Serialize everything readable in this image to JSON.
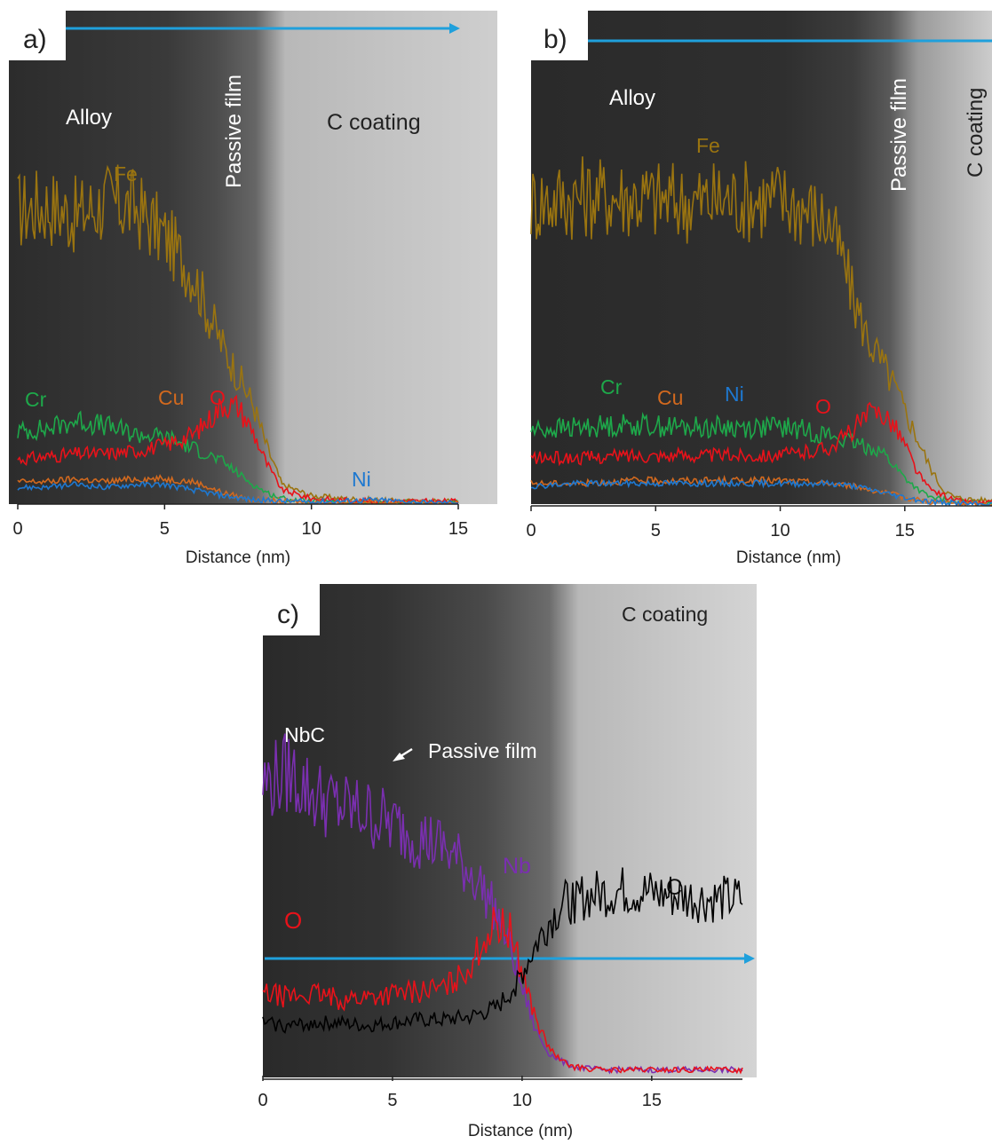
{
  "colors": {
    "Fe": "#9a7410",
    "Cr": "#1ea84a",
    "Cu": "#d2691e",
    "O": "#e8121a",
    "Ni": "#1e78d0",
    "Nb": "#7a2fb0",
    "C": "#000000",
    "arrow": "#1fa0dc",
    "tem_dark": "#2e2e2e",
    "tem_light": "#c8c8c8"
  },
  "chart_data": [
    {
      "type": "line",
      "panel_label": "a)",
      "xlabel": "Distance (nm)",
      "xlim": [
        0,
        15
      ],
      "xticks": [
        0,
        5,
        10,
        15
      ],
      "annotations": [
        "Alloy",
        "Passive film",
        "C coating"
      ],
      "series": [
        {
          "name": "Fe",
          "x": [
            0,
            1,
            2,
            3,
            4,
            5,
            6,
            6.5,
            7,
            7.5,
            8,
            8.5,
            9,
            10,
            11,
            12,
            13,
            14,
            15
          ],
          "y": [
            105,
            107,
            103,
            108,
            106,
            96,
            82,
            68,
            56,
            46,
            36,
            20,
            7,
            3,
            2,
            1.5,
            1,
            1,
            1
          ]
        },
        {
          "name": "Cr",
          "x": [
            0,
            1,
            2,
            3,
            4,
            5,
            6,
            7,
            7.5,
            8,
            8.5,
            9,
            10,
            11,
            12,
            13,
            14,
            15
          ],
          "y": [
            26,
            27,
            30,
            28,
            25,
            24,
            20,
            15,
            11,
            7,
            4,
            2,
            1,
            0.5,
            0.5,
            0.5,
            0.5,
            0.5
          ]
        },
        {
          "name": "O",
          "x": [
            0,
            1,
            2,
            3,
            4,
            5,
            6,
            6.5,
            7,
            7.5,
            8,
            8.5,
            9,
            10,
            11,
            12,
            13,
            14,
            15
          ],
          "y": [
            16,
            17,
            18,
            18,
            19,
            21,
            25,
            30,
            36,
            35,
            26,
            14,
            5,
            2,
            1.5,
            1,
            1,
            1,
            1
          ]
        },
        {
          "name": "Cu",
          "x": [
            0,
            1,
            2,
            3,
            4,
            5,
            6,
            7,
            8,
            9,
            10,
            11,
            12,
            13,
            14,
            15
          ],
          "y": [
            8,
            8,
            9,
            8,
            9,
            9,
            8,
            4,
            1.5,
            1,
            0.5,
            0.5,
            0.5,
            0.5,
            0.5,
            0.5
          ]
        },
        {
          "name": "Ni",
          "x": [
            0,
            1,
            2,
            3,
            4,
            5,
            6,
            7,
            8,
            9,
            10,
            11,
            12,
            13,
            14,
            15
          ],
          "y": [
            6,
            6,
            7,
            6,
            7,
            7,
            5,
            3,
            1.5,
            1,
            0.8,
            1,
            1.5,
            1,
            0.5,
            0.5
          ]
        }
      ]
    },
    {
      "type": "line",
      "panel_label": "b)",
      "xlabel": "Distance (nm)",
      "xlim": [
        0,
        18.5
      ],
      "xticks": [
        0,
        5,
        10,
        15
      ],
      "annotations": [
        "Alloy",
        "Fe",
        "Passive film",
        "C coating"
      ],
      "series": [
        {
          "name": "Fe",
          "x": [
            0,
            2,
            4,
            6,
            8,
            10,
            11,
            12,
            12.5,
            13,
            13.5,
            14,
            14.5,
            15,
            15.5,
            16,
            16.5,
            17,
            18
          ],
          "y": [
            108,
            110,
            110,
            108,
            109,
            109,
            106,
            100,
            88,
            72,
            60,
            52,
            44,
            34,
            24,
            14,
            6,
            3,
            2
          ]
        },
        {
          "name": "Cr",
          "x": [
            0,
            2,
            4,
            6,
            8,
            10,
            11,
            12,
            13,
            14,
            14.5,
            15,
            15.5,
            16,
            17,
            18
          ],
          "y": [
            27,
            28,
            29,
            28,
            28,
            28,
            27,
            25,
            22,
            20,
            15,
            10,
            6,
            3,
            1.5,
            1
          ]
        },
        {
          "name": "O",
          "x": [
            0,
            2,
            4,
            6,
            8,
            10,
            11,
            12,
            12.5,
            13,
            13.5,
            14,
            14.5,
            15,
            15.5,
            16,
            17,
            18
          ],
          "y": [
            17,
            17,
            18,
            18,
            18,
            18,
            19,
            21,
            24,
            28,
            32,
            34,
            30,
            22,
            12,
            6,
            2,
            1
          ]
        },
        {
          "name": "Cu",
          "x": [
            0,
            2,
            4,
            6,
            8,
            10,
            12,
            13,
            14,
            15,
            16,
            17,
            18
          ],
          "y": [
            8,
            8,
            9,
            9,
            9,
            9,
            8,
            7,
            5,
            3,
            1.5,
            1,
            0.5
          ]
        },
        {
          "name": "Ni",
          "x": [
            0,
            2,
            4,
            6,
            8,
            10,
            12,
            13,
            14,
            15,
            16,
            17,
            18
          ],
          "y": [
            7,
            8,
            8,
            8,
            8,
            8,
            8,
            7,
            5,
            3,
            1.5,
            1,
            0.5
          ]
        }
      ]
    },
    {
      "type": "line",
      "panel_label": "c)",
      "xlabel": "Distance (nm)",
      "xlim": [
        0,
        18.5
      ],
      "xticks": [
        0,
        5,
        10,
        15
      ],
      "annotations": [
        "C coating",
        "NbC",
        "Passive film",
        "Nb",
        "C",
        "O"
      ],
      "series": [
        {
          "name": "Nb",
          "x": [
            0,
            1,
            2,
            3,
            4,
            5,
            6,
            7,
            7.5,
            8,
            8.5,
            9,
            9.5,
            10,
            10.5,
            11,
            11.5,
            12,
            13,
            14,
            15,
            16,
            17,
            18
          ],
          "y": [
            100,
            104,
            96,
            92,
            90,
            86,
            82,
            78,
            74,
            70,
            64,
            56,
            45,
            30,
            16,
            8,
            5,
            3,
            2,
            2,
            2,
            2,
            2,
            2
          ]
        },
        {
          "name": "O",
          "x": [
            0,
            1,
            2,
            3,
            4,
            5,
            6,
            7,
            7.5,
            8,
            8.5,
            9,
            9.5,
            10,
            10.5,
            11,
            11.5,
            12,
            13,
            14,
            15,
            16,
            17,
            18
          ],
          "y": [
            28,
            27,
            28,
            26,
            27,
            28,
            29,
            30,
            33,
            38,
            46,
            52,
            50,
            36,
            20,
            10,
            5,
            3,
            2,
            2,
            2,
            2,
            2,
            2
          ]
        },
        {
          "name": "C",
          "x": [
            0,
            1,
            2,
            3,
            4,
            5,
            6,
            7,
            8,
            9,
            9.5,
            10,
            10.5,
            11,
            11.5,
            12,
            13,
            14,
            15,
            16,
            17,
            18
          ],
          "y": [
            18,
            17,
            18,
            18,
            17,
            18,
            19,
            19,
            20,
            23,
            28,
            35,
            44,
            52,
            58,
            60,
            62,
            63,
            62,
            61,
            60,
            60
          ]
        }
      ]
    }
  ]
}
